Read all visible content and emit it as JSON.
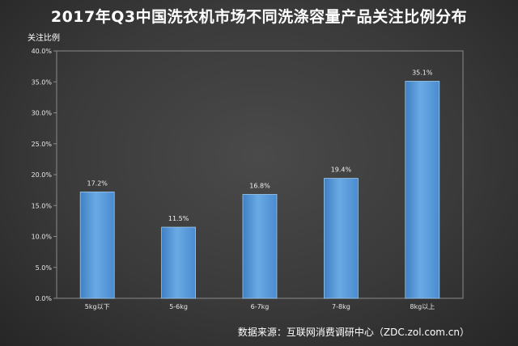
{
  "chart_data": {
    "type": "bar",
    "title": "2017年Q3中国洗衣机市场不同洗涤容量产品关注比例分布",
    "ylabel": "关注比例",
    "xlabel": "",
    "categories": [
      "5kg以下",
      "5-6kg",
      "6-7kg",
      "7-8kg",
      "8kg以上"
    ],
    "values": [
      17.2,
      11.5,
      16.8,
      19.4,
      35.1
    ],
    "data_labels": [
      "17.2%",
      "11.5%",
      "16.8%",
      "19.4%",
      "35.1%"
    ],
    "ylim": [
      0,
      40
    ],
    "yticks": [
      "0.0%",
      "5.0%",
      "10.0%",
      "15.0%",
      "20.0%",
      "25.0%",
      "30.0%",
      "35.0%",
      "40.0%"
    ],
    "grid": false,
    "legend": "none",
    "bar_color": "#5b9bd5"
  },
  "source": "数据来源：互联网消费调研中心（ZDC.zol.com.cn）"
}
